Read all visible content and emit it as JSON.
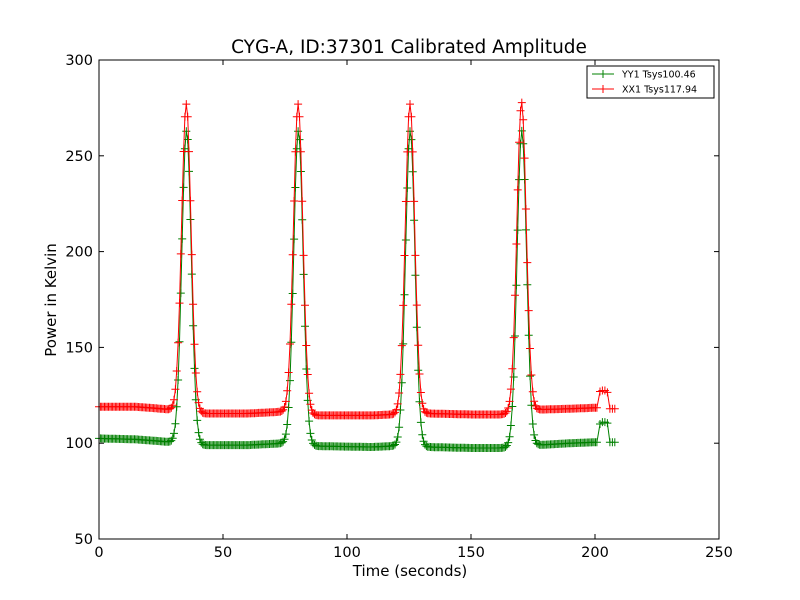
{
  "chart_data": {
    "type": "line",
    "title": "CYG-A, ID:37301 Calibrated Amplitude",
    "xlabel": "Time (seconds)",
    "ylabel": "Power in Kelvin",
    "xlim": [
      0,
      250
    ],
    "ylim": [
      50,
      300
    ],
    "xticks": [
      0,
      50,
      100,
      150,
      200,
      250
    ],
    "yticks": [
      50,
      100,
      150,
      200,
      250,
      300
    ],
    "grid": false,
    "legend_position": "top-right",
    "marker": "+",
    "series": [
      {
        "name": "YY1 Tsys100.46",
        "color": "#008000",
        "baseline": [
          [
            0,
            102.5
          ],
          [
            15,
            102
          ],
          [
            25,
            101
          ],
          [
            29,
            100.5
          ],
          [
            42,
            99
          ],
          [
            60,
            99
          ],
          [
            75,
            100
          ],
          [
            88,
            98.5
          ],
          [
            110,
            98
          ],
          [
            118,
            98.5
          ],
          [
            133,
            98
          ],
          [
            150,
            97.5
          ],
          [
            162,
            97.5
          ],
          [
            177,
            99
          ],
          [
            190,
            100
          ],
          [
            200,
            100.5
          ]
        ],
        "peaks": [
          {
            "center": 35.3,
            "peak": 263,
            "sigma": 1.9
          },
          {
            "center": 80.4,
            "peak": 263,
            "sigma": 1.9
          },
          {
            "center": 125.5,
            "peak": 263,
            "sigma": 1.9
          },
          {
            "center": 170.5,
            "peak": 263,
            "sigma": 1.9
          }
        ],
        "x_range": [
          0,
          201
        ],
        "tail": [
          [
            202,
            110
          ],
          [
            203,
            111
          ],
          [
            204,
            111
          ],
          [
            205,
            110.5
          ],
          [
            206,
            100.5
          ],
          [
            207,
            100.5
          ],
          [
            208,
            100.5
          ]
        ]
      },
      {
        "name": "XX1 Tsys117.94",
        "color": "#ff0000",
        "baseline": [
          [
            0,
            119
          ],
          [
            15,
            119
          ],
          [
            25,
            118
          ],
          [
            29,
            117.5
          ],
          [
            42,
            115.5
          ],
          [
            60,
            115.5
          ],
          [
            75,
            116.5
          ],
          [
            88,
            114.5
          ],
          [
            110,
            114.5
          ],
          [
            118,
            115
          ],
          [
            133,
            115.5
          ],
          [
            150,
            115
          ],
          [
            162,
            115
          ],
          [
            177,
            117.5
          ],
          [
            190,
            118
          ],
          [
            200,
            118.5
          ]
        ],
        "peaks": [
          {
            "center": 35.2,
            "peak": 277,
            "sigma": 1.9
          },
          {
            "center": 80.3,
            "peak": 277,
            "sigma": 1.9
          },
          {
            "center": 125.4,
            "peak": 277,
            "sigma": 1.9
          },
          {
            "center": 170.4,
            "peak": 278,
            "sigma": 1.9
          }
        ],
        "x_range": [
          0,
          201
        ],
        "tail": [
          [
            202,
            127
          ],
          [
            203,
            127.5
          ],
          [
            204,
            127.5
          ],
          [
            205,
            126.5
          ],
          [
            206,
            118
          ],
          [
            207,
            118
          ],
          [
            208,
            118
          ]
        ]
      }
    ]
  }
}
